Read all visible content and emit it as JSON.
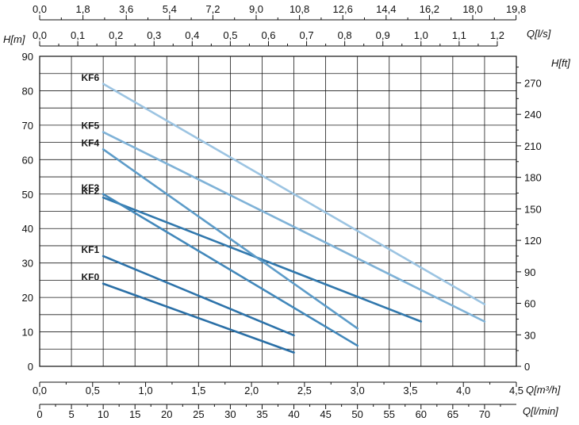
{
  "chart_data": {
    "type": "line",
    "ylabel_left": "H[m]",
    "ylabel_right": "H[ft]",
    "xlabel_top_lps": "Q[l/s]",
    "xlabel_bottom_m3h": "Q[m³/h]",
    "xlabel_bottom_lmin": "Q[l/min]",
    "ylim": [
      0,
      90
    ],
    "xlim_lmin": [
      0,
      75
    ],
    "grid": true,
    "legend_placement": "inline-left",
    "ticks": {
      "left_m": [
        "0",
        "10",
        "20",
        "30",
        "40",
        "50",
        "60",
        "70",
        "80",
        "90"
      ],
      "right_ft": [
        "0",
        "30",
        "60",
        "90",
        "120",
        "150",
        "180",
        "210",
        "240",
        "270"
      ],
      "top_gpm": [
        "0,0",
        "1,8",
        "3,6",
        "5,4",
        "7,2",
        "9,0",
        "10,8",
        "12,6",
        "14,4",
        "16,2",
        "18,0",
        "19,8"
      ],
      "top_lps": [
        "0,0",
        "0,1",
        "0,2",
        "0,3",
        "0,4",
        "0,5",
        "0,6",
        "0,7",
        "0,8",
        "0,9",
        "1,0",
        "1,1",
        "1,2"
      ],
      "bottom_m3h": [
        "0,0",
        "0,5",
        "1,0",
        "1,5",
        "2,0",
        "2,5",
        "3,0",
        "3,5",
        "4,0",
        "4,5"
      ],
      "bottom_lmin": [
        "0",
        "5",
        "10",
        "15",
        "20",
        "25",
        "30",
        "35",
        "40",
        "45",
        "50",
        "55",
        "60",
        "65",
        "70"
      ]
    },
    "series": [
      {
        "name": "KF0",
        "color": "#2a6fa6",
        "x": [
          10,
          40
        ],
        "y": [
          24,
          4
        ]
      },
      {
        "name": "KF1",
        "color": "#2d73aa",
        "x": [
          10,
          40
        ],
        "y": [
          32,
          9
        ]
      },
      {
        "name": "KF2",
        "color": "#3178ad",
        "x": [
          10,
          60
        ],
        "y": [
          49,
          13
        ]
      },
      {
        "name": "KF3",
        "color": "#4288bb",
        "x": [
          10,
          50
        ],
        "y": [
          50,
          6
        ]
      },
      {
        "name": "KF4",
        "color": "#5d9cc9",
        "x": [
          10,
          50
        ],
        "y": [
          63,
          11
        ]
      },
      {
        "name": "KF5",
        "color": "#7fb2d7",
        "x": [
          10,
          70
        ],
        "y": [
          68,
          13
        ]
      },
      {
        "name": "KF6",
        "color": "#9cc4e2",
        "x": [
          10,
          70
        ],
        "y": [
          82,
          18
        ]
      }
    ]
  }
}
